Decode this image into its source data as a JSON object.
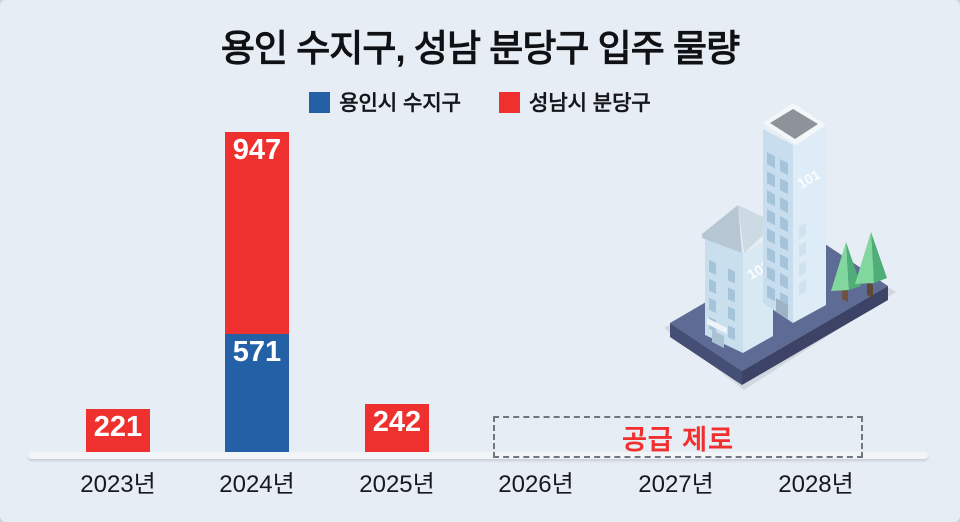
{
  "title": "용인 수지구, 성남 분당구 입주 물량",
  "legend": {
    "items": [
      {
        "label": "용인시 수지구",
        "color": "#2460a6"
      },
      {
        "label": "성남시 분당구",
        "color": "#ee312e"
      }
    ]
  },
  "chart_data": {
    "type": "bar",
    "stacked": true,
    "title": "용인 수지구, 성남 분당구 입주 물량",
    "categories": [
      "2023년",
      "2024년",
      "2025년",
      "2026년",
      "2027년",
      "2028년"
    ],
    "series": [
      {
        "name": "용인시 수지구",
        "color": "#2460a6",
        "values": [
          0,
          571,
          0,
          0,
          0,
          0
        ]
      },
      {
        "name": "성남시 분당구",
        "color": "#ee312e",
        "values": [
          221,
          947,
          242,
          0,
          0,
          0
        ]
      }
    ],
    "value_labels": true,
    "grid": false,
    "legend_position": "top",
    "annotation": {
      "label": "공급 제로",
      "years": [
        "2026년",
        "2027년",
        "2028년"
      ],
      "color": "#f22f2f"
    }
  },
  "illustration": {
    "building_labels": [
      "101",
      "103"
    ]
  }
}
